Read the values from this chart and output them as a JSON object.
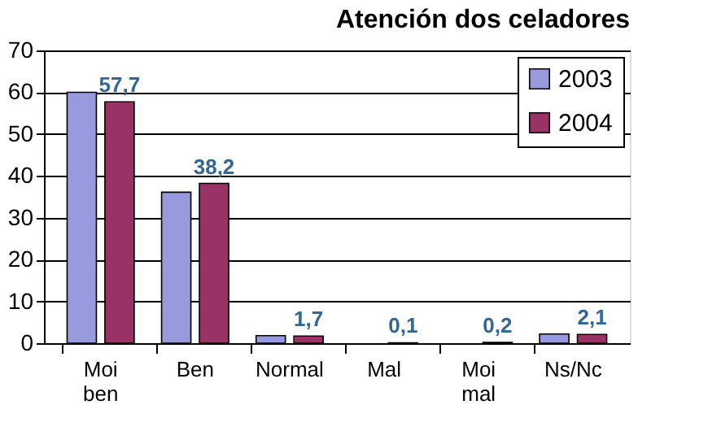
{
  "chart_data": {
    "type": "bar",
    "title": "Atención dos celadores",
    "categories": [
      "Moi ben",
      "Ben",
      "Normal",
      "Mal",
      "Moi mal",
      "Ns/Nc"
    ],
    "series": [
      {
        "name": "2003",
        "color": "#9999dd",
        "values": [
          60.0,
          36.1,
          1.8,
          0,
          0,
          2.2
        ]
      },
      {
        "name": "2004",
        "color": "#993366",
        "values": [
          57.7,
          38.2,
          1.7,
          0.1,
          0.2,
          2.1
        ],
        "value_labels": [
          "57,7",
          "38,2",
          "1,7",
          "0,1",
          "0,2",
          "2,1"
        ]
      }
    ],
    "ylim": [
      0,
      70
    ],
    "yticks": [
      0,
      10,
      20,
      30,
      40,
      50,
      60,
      70
    ],
    "grid": "y",
    "legend": "top right"
  }
}
